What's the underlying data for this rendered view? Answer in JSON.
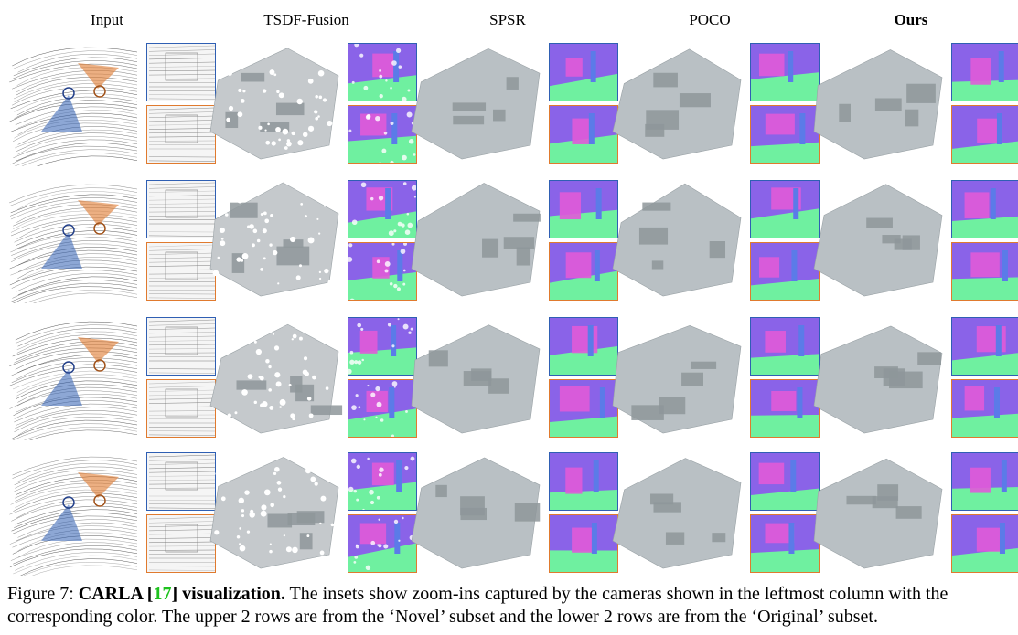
{
  "headers": {
    "input": "Input",
    "tsdf": "TSDF-Fusion",
    "spsr": "SPSR",
    "poco": "POCO",
    "ours": "Ours"
  },
  "caption": {
    "prefix": "Figure 7: ",
    "bold_title": "CARLA [",
    "ref": "17",
    "bold_title_end": "] visualization.",
    "body": " The insets show zoom-ins captured by the cameras shown in the leftmost column with the corresponding color. The upper 2 rows are from the ‘Novel’ subset and the lower 2 rows are from the ‘Original’ subset."
  },
  "colors": {
    "blue_camera": "#2f5fb3",
    "orange_camera": "#e07a2e",
    "mesh_gray": "#b9c0c4",
    "normal_purple": "#8a63e8",
    "normal_green": "#6ff0a0",
    "normal_magenta": "#e05ad8",
    "ref_green": "#1ec21e"
  }
}
